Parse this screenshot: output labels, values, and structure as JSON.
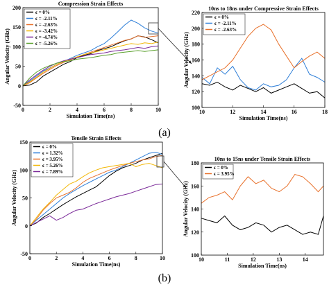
{
  "panel_labels": [
    "(a)",
    "(b)"
  ],
  "chart_data": [
    {
      "type": "line",
      "title": "Compression Strain Effects",
      "xlabel": "Simulation Time(ns)",
      "ylabel": "Angular Velocity (GHz)",
      "xlim": [
        0,
        10
      ],
      "ylim": [
        -50,
        200
      ],
      "xticks": [
        "0",
        "2",
        "4",
        "6",
        "8",
        "10"
      ],
      "yticks": [
        "-50",
        "0",
        "50",
        "100",
        "150",
        "200"
      ],
      "grid": false,
      "legend_position": "top-left",
      "series": [
        {
          "name": "ϵ = 0%",
          "color": "#000000",
          "x": [
            0,
            0.5,
            1,
            1.5,
            2,
            2.5,
            3,
            3.5,
            4,
            4.5,
            5,
            5.5,
            6,
            6.5,
            7,
            7.5,
            8,
            8.5,
            9,
            9.5,
            10
          ],
          "y": [
            0,
            2,
            10,
            25,
            35,
            45,
            55,
            62,
            72,
            78,
            82,
            90,
            95,
            100,
            108,
            115,
            120,
            128,
            125,
            118,
            110
          ]
        },
        {
          "name": "ϵ = -2.11%",
          "color": "#2f7fd8",
          "x": [
            0,
            0.5,
            1,
            1.5,
            2,
            2.5,
            3,
            3.5,
            4,
            4.5,
            5,
            5.5,
            6,
            6.5,
            7,
            7.5,
            8,
            8.5,
            9,
            9.5,
            10
          ],
          "y": [
            0,
            12,
            25,
            38,
            46,
            55,
            62,
            70,
            78,
            84,
            90,
            100,
            108,
            122,
            138,
            155,
            168,
            160,
            148,
            140,
            135
          ]
        },
        {
          "name": "ϵ = -2.63%",
          "color": "#e8702a",
          "x": [
            0,
            0.5,
            1,
            1.5,
            2,
            2.5,
            3,
            3.5,
            4,
            4.5,
            5,
            5.5,
            6,
            6.5,
            7,
            7.5,
            8,
            8.5,
            9,
            9.5,
            10
          ],
          "y": [
            0,
            8,
            20,
            32,
            42,
            52,
            60,
            66,
            74,
            80,
            86,
            92,
            98,
            104,
            110,
            116,
            120,
            128,
            124,
            126,
            128
          ]
        },
        {
          "name": "ϵ = -3.42%",
          "color": "#f2b705",
          "x": [
            0,
            0.5,
            1,
            1.5,
            2,
            2.5,
            3,
            3.5,
            4,
            4.5,
            5,
            5.5,
            6,
            6.5,
            7,
            7.5,
            8,
            8.5,
            9,
            9.5,
            10
          ],
          "y": [
            0,
            10,
            22,
            35,
            45,
            55,
            62,
            68,
            74,
            80,
            84,
            88,
            92,
            96,
            100,
            104,
            108,
            106,
            110,
            108,
            112
          ]
        },
        {
          "name": "ϵ = -4.74%",
          "color": "#7b2a99",
          "x": [
            0,
            0.5,
            1,
            1.5,
            2,
            2.5,
            3,
            3.5,
            4,
            4.5,
            5,
            5.5,
            6,
            6.5,
            7,
            7.5,
            8,
            8.5,
            9,
            9.5,
            10
          ],
          "y": [
            0,
            15,
            28,
            40,
            50,
            58,
            64,
            68,
            72,
            76,
            80,
            82,
            84,
            88,
            90,
            92,
            95,
            98,
            96,
            100,
            102
          ]
        },
        {
          "name": "ϵ = -5.26%",
          "color": "#5aa02c",
          "x": [
            0,
            0.5,
            1,
            1.5,
            2,
            2.5,
            3,
            3.5,
            4,
            4.5,
            5,
            5.5,
            6,
            6.5,
            7,
            7.5,
            8,
            8.5,
            9,
            9.5,
            10
          ],
          "y": [
            0,
            20,
            35,
            45,
            52,
            58,
            62,
            64,
            68,
            70,
            72,
            75,
            78,
            80,
            84,
            86,
            88,
            90,
            88,
            90,
            92
          ]
        }
      ]
    },
    {
      "type": "line",
      "title": "10ns to 18ns under Compressive Strain Effects",
      "xlabel": "Simulation Time(ns)",
      "ylabel": "Angular Velocity (GHz)",
      "xlim": [
        10,
        18
      ],
      "ylim": [
        100,
        220
      ],
      "xticks": [
        "10",
        "12",
        "14",
        "16",
        "18"
      ],
      "yticks": [
        "100",
        "120",
        "140",
        "160",
        "180",
        "200",
        "220"
      ],
      "grid": false,
      "legend_position": "top-left",
      "series": [
        {
          "name": "ϵ = 0%",
          "color": "#000000",
          "x": [
            10,
            10.5,
            11,
            11.5,
            12,
            12.5,
            13,
            13.5,
            14,
            14.5,
            15,
            15.5,
            16,
            16.5,
            17,
            17.5,
            18
          ],
          "y": [
            130,
            128,
            132,
            126,
            122,
            128,
            124,
            120,
            125,
            118,
            122,
            126,
            130,
            124,
            118,
            120,
            112
          ]
        },
        {
          "name": "ϵ = -2.11%",
          "color": "#2f7fd8",
          "x": [
            10,
            10.5,
            11,
            11.5,
            12,
            12.5,
            13,
            13.5,
            14,
            14.5,
            15,
            15.5,
            16,
            16.5,
            17,
            17.5,
            18
          ],
          "y": [
            138,
            130,
            150,
            142,
            152,
            135,
            125,
            122,
            130,
            126,
            128,
            135,
            150,
            162,
            142,
            138,
            132
          ]
        },
        {
          "name": "ϵ = -2.63%",
          "color": "#e8702a",
          "x": [
            10,
            10.5,
            11,
            11.5,
            12,
            12.5,
            13,
            13.5,
            14,
            14.5,
            15,
            15.5,
            16,
            16.5,
            17,
            17.5,
            18
          ],
          "y": [
            135,
            140,
            145,
            150,
            160,
            175,
            190,
            200,
            205,
            198,
            180,
            165,
            150,
            158,
            165,
            170,
            162
          ]
        }
      ]
    },
    {
      "type": "line",
      "title": "Tensile Strain Effects",
      "xlabel": "Simulation Time(ns)",
      "ylabel": "Angular Velocity (GHz)",
      "xlim": [
        0,
        10
      ],
      "ylim": [
        -50,
        150
      ],
      "xticks": [
        "0",
        "2",
        "4",
        "6",
        "8",
        "10"
      ],
      "yticks": [
        "-50",
        "0",
        "50",
        "100",
        "150"
      ],
      "grid": false,
      "legend_position": "top-left",
      "series": [
        {
          "name": "ϵ = 0%",
          "color": "#000000",
          "x": [
            0,
            0.5,
            1,
            1.5,
            2,
            2.5,
            3,
            3.5,
            4,
            4.5,
            5,
            5.5,
            6,
            6.5,
            7,
            7.5,
            8,
            8.5,
            9,
            9.5,
            10
          ],
          "y": [
            0,
            5,
            15,
            22,
            30,
            38,
            45,
            52,
            58,
            64,
            70,
            80,
            90,
            98,
            104,
            108,
            112,
            118,
            122,
            126,
            130
          ]
        },
        {
          "name": "ϵ = 1.32%",
          "color": "#2f7fd8",
          "x": [
            0,
            0.5,
            1,
            1.5,
            2,
            2.5,
            3,
            3.5,
            4,
            4.5,
            5,
            5.5,
            6,
            6.5,
            7,
            7.5,
            8,
            8.5,
            9,
            9.5,
            10
          ],
          "y": [
            0,
            10,
            20,
            30,
            40,
            50,
            58,
            65,
            72,
            78,
            84,
            90,
            96,
            100,
            106,
            112,
            118,
            124,
            130,
            132,
            128
          ]
        },
        {
          "name": "ϵ = 3.95%",
          "color": "#e8702a",
          "x": [
            0,
            0.5,
            1,
            1.5,
            2,
            2.5,
            3,
            3.5,
            4,
            4.5,
            5,
            5.5,
            6,
            6.5,
            7,
            7.5,
            8,
            8.5,
            9,
            9.5,
            10
          ],
          "y": [
            0,
            12,
            28,
            40,
            50,
            55,
            60,
            68,
            78,
            85,
            90,
            95,
            100,
            104,
            108,
            112,
            115,
            118,
            120,
            124,
            126
          ]
        },
        {
          "name": "ϵ = 5.26%",
          "color": "#f2b705",
          "x": [
            0,
            0.5,
            1,
            1.5,
            2,
            2.5,
            3,
            3.5,
            4,
            4.5,
            5,
            5.5,
            6,
            6.5,
            7,
            7.5,
            8,
            8.5,
            9,
            9.5,
            10
          ],
          "y": [
            0,
            15,
            30,
            42,
            55,
            65,
            75,
            80,
            88,
            95,
            100,
            104,
            106,
            108,
            110,
            112,
            106,
            110,
            112,
            108,
            104
          ]
        },
        {
          "name": "ϵ = 7.89%",
          "color": "#7b2a99",
          "x": [
            0,
            0.5,
            1,
            1.5,
            2,
            2.5,
            3,
            3.5,
            4,
            4.5,
            5,
            5.5,
            6,
            6.5,
            7,
            7.5,
            8,
            8.5,
            9,
            9.5,
            10
          ],
          "y": [
            0,
            6,
            12,
            18,
            10,
            15,
            22,
            28,
            30,
            35,
            40,
            44,
            48,
            52,
            55,
            58,
            62,
            66,
            70,
            74,
            75
          ]
        }
      ]
    },
    {
      "type": "line",
      "title": "10ns to 15ns under Tensile Strain Effects",
      "xlabel": "Simulation Time(ns)",
      "ylabel": "Angular Velocity (GHz)",
      "xlim": [
        10,
        14.7
      ],
      "ylim": [
        100,
        180
      ],
      "xticks": [
        "10",
        "11",
        "12",
        "13",
        "14"
      ],
      "yticks": [
        "100",
        "120",
        "140",
        "160",
        "180"
      ],
      "grid": false,
      "legend_position": "top-left",
      "series": [
        {
          "name": "ϵ = 0%",
          "color": "#000000",
          "x": [
            10,
            10.3,
            10.6,
            10.9,
            11.2,
            11.5,
            11.8,
            12.1,
            12.4,
            12.7,
            13,
            13.3,
            13.6,
            13.9,
            14.2,
            14.5,
            14.7
          ],
          "y": [
            132,
            130,
            128,
            134,
            126,
            122,
            124,
            128,
            126,
            120,
            124,
            126,
            122,
            118,
            120,
            118,
            134
          ]
        },
        {
          "name": "ϵ = 3.95%",
          "color": "#e8702a",
          "x": [
            10,
            10.3,
            10.6,
            10.9,
            11.2,
            11.5,
            11.8,
            12.1,
            12.4,
            12.7,
            13,
            13.3,
            13.6,
            13.9,
            14.2,
            14.5,
            14.7
          ],
          "y": [
            145,
            150,
            152,
            155,
            148,
            160,
            168,
            162,
            165,
            158,
            155,
            160,
            170,
            168,
            162,
            155,
            160
          ]
        }
      ]
    }
  ]
}
